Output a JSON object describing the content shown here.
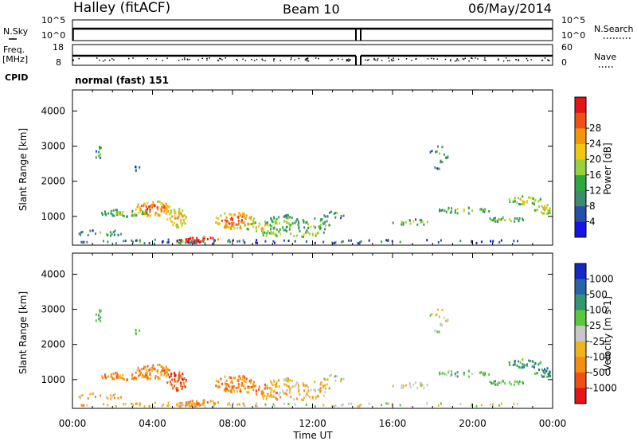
{
  "header": {
    "title": "Halley (fitACF)",
    "beam": "Beam 10",
    "date": "06/May/2014"
  },
  "summary_panels": {
    "nsky_label": "N.Sky",
    "nsearch_label": "N.Search",
    "noise_ticks": [
      "10^5",
      "10^0"
    ],
    "freq_label": "Freq.",
    "freq_unit": "[MHz]",
    "freq_ticks": [
      "18",
      "8"
    ],
    "nave_label": "Nave",
    "nave_ticks": [
      "60",
      "0"
    ],
    "cpid_label": "CPID",
    "cpid_value": "normal (fast) 151"
  },
  "chart_data": [
    {
      "type": "heatmap",
      "name": "power",
      "ylabel": "Slant Range [km]",
      "ylim": [
        180,
        4600
      ],
      "yticks": [
        "1000",
        "2000",
        "3000",
        "4000"
      ],
      "colorbar_label": "Power [dB]",
      "colorbar_ticks": [
        "4",
        "8",
        "12",
        "16",
        "20",
        "24",
        "28"
      ],
      "colors": [
        "#1414e6",
        "#2850a8",
        "#3c8c6e",
        "#2da83c",
        "#96d23c",
        "#f0c814",
        "#f5960a",
        "#f05014",
        "#e61414"
      ]
    },
    {
      "type": "heatmap",
      "name": "velocity",
      "ylabel": "Slant Range [km]",
      "ylim": [
        180,
        4600
      ],
      "yticks": [
        "1000",
        "2000",
        "3000",
        "4000"
      ],
      "colorbar_label": "Velocity [m s-1]",
      "colorbar_ticks": [
        "1000",
        "500",
        "100",
        "25",
        "-25",
        "-100",
        "-500",
        "-1000"
      ],
      "colors": [
        "#1428c8",
        "#2864aa",
        "#32966e",
        "#5ac83c",
        "#c8c8c8",
        "#f0b41e",
        "#f58c14",
        "#f05014",
        "#e61414"
      ]
    }
  ],
  "x_axis": {
    "label": "Time UT",
    "ticks": [
      "00:00",
      "04:00",
      "08:00",
      "12:00",
      "16:00",
      "20:00",
      "00:00"
    ]
  }
}
